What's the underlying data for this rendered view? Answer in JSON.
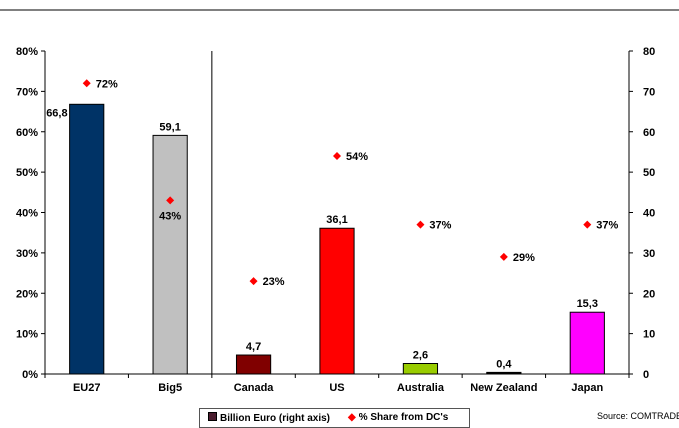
{
  "chart_data": {
    "type": "bar",
    "categories": [
      "EU27",
      "Big5",
      "Canada",
      "US",
      "Australia",
      "New Zealand",
      "Japan"
    ],
    "series": [
      {
        "name": "Billion Euro (right axis)",
        "axis": "right",
        "values": [
          66.8,
          59.1,
          4.7,
          36.1,
          2.6,
          0.4,
          15.3
        ],
        "labels": [
          "66,8",
          "59,1",
          "4,7",
          "36,1",
          "2,6",
          "0,4",
          "15,3"
        ],
        "colors": [
          "#003366",
          "#c0c0c0",
          "#800000",
          "#ff0000",
          "#99cc00",
          "#000000",
          "#ff00ff"
        ]
      },
      {
        "name": "% Share from DC's",
        "axis": "left",
        "type": "scatter",
        "values": [
          72,
          43,
          23,
          54,
          37,
          29,
          37
        ],
        "labels": [
          "72%",
          "43%",
          "23%",
          "54%",
          "37%",
          "29%",
          "37%"
        ],
        "color": "#ff0000"
      }
    ],
    "y_left": {
      "ticks": [
        "0%",
        "10%",
        "20%",
        "30%",
        "40%",
        "50%",
        "60%",
        "70%",
        "80%"
      ],
      "ylim": [
        0,
        80
      ]
    },
    "y_right": {
      "ticks": [
        "0",
        "10",
        "20",
        "30",
        "40",
        "50",
        "60",
        "70",
        "80"
      ],
      "ylim": [
        0,
        80
      ]
    },
    "grid": false,
    "separator_after": "Big5",
    "legend_position": "bottom"
  },
  "legend": {
    "bar_label": "Billion Euro (right axis)",
    "point_label": "% Share from DC's"
  },
  "source": "Source: COMTRADE"
}
